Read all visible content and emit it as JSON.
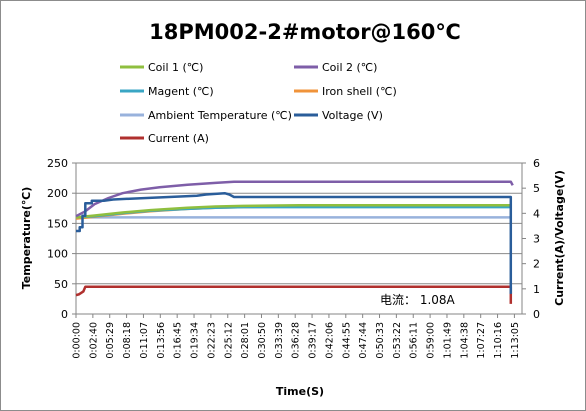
{
  "chart_data": {
    "type": "line",
    "title": "18PM002-2#motor@160℃",
    "xlabel": "Time(S)",
    "ylabel_left": "Temperature(℃)",
    "ylabel_right": "Current(A)/Voltage(V)",
    "ylim_left": [
      0,
      250
    ],
    "ylim_right": [
      0,
      6
    ],
    "yticks_left": [
      "0",
      "50",
      "100",
      "150",
      "200",
      "250"
    ],
    "yticks_right": [
      "0",
      "1",
      "2",
      "3",
      "4",
      "5",
      "6"
    ],
    "x_range_s": [
      0,
      4800
    ],
    "xticks": [
      "0:00:00",
      "0:02:40",
      "0:05:29",
      "0:08:18",
      "0:11:07",
      "0:13:56",
      "0:16:45",
      "0:19:34",
      "0:22:23",
      "0:25:12",
      "0:28:01",
      "0:30:50",
      "0:33:39",
      "0:36:28",
      "0:39:17",
      "0:42:06",
      "0:44:55",
      "0:47:44",
      "0:50:33",
      "0:53:22",
      "0:56:11",
      "0:59:00",
      "1:01:49",
      "1:04:38",
      "1:07:27",
      "1:10:16",
      "1:13:05"
    ],
    "grid": true,
    "legend": "top",
    "annotation": "电流：  1.08A",
    "series": [
      {
        "name": "Coil 1 (℃)",
        "axis": "left",
        "color": "#8fbf3f",
        "points": [
          [
            0,
            160
          ],
          [
            200,
            163
          ],
          [
            500,
            168
          ],
          [
            800,
            172
          ],
          [
            1200,
            176
          ],
          [
            1500,
            178
          ],
          [
            1800,
            179
          ],
          [
            2400,
            180
          ],
          [
            3600,
            180
          ],
          [
            4560,
            180
          ],
          [
            4680,
            180
          ]
        ]
      },
      {
        "name": "Coil 2 (℃)",
        "axis": "left",
        "color": "#7e5ea8",
        "points": [
          [
            0,
            162
          ],
          [
            100,
            170
          ],
          [
            200,
            182
          ],
          [
            350,
            192
          ],
          [
            500,
            200
          ],
          [
            700,
            206
          ],
          [
            900,
            210
          ],
          [
            1200,
            214
          ],
          [
            1500,
            217
          ],
          [
            1700,
            219
          ],
          [
            1900,
            219
          ],
          [
            2400,
            219
          ],
          [
            3600,
            219
          ],
          [
            4560,
            219
          ],
          [
            4680,
            219
          ],
          [
            4700,
            213
          ]
        ]
      },
      {
        "name": "Magent (℃)",
        "axis": "left",
        "color": "#39a6c4",
        "points": [
          [
            0,
            160
          ],
          [
            200,
            162
          ],
          [
            500,
            167
          ],
          [
            800,
            171
          ],
          [
            1200,
            174
          ],
          [
            1500,
            176
          ],
          [
            1800,
            177
          ],
          [
            2400,
            177
          ],
          [
            3600,
            177
          ],
          [
            4560,
            177
          ],
          [
            4680,
            177
          ]
        ]
      },
      {
        "name": "Iron shell (℃)",
        "axis": "left",
        "color": "#f0933a",
        "points": [
          [
            0,
            158
          ],
          [
            200,
            161
          ],
          [
            500,
            166
          ],
          [
            800,
            170
          ],
          [
            1200,
            174
          ],
          [
            1500,
            176
          ],
          [
            1800,
            177
          ],
          [
            2400,
            178
          ],
          [
            3600,
            178
          ],
          [
            4560,
            178
          ],
          [
            4680,
            178
          ]
        ]
      },
      {
        "name": "Ambient Temperature (℃)",
        "axis": "left",
        "color": "#98b2dc",
        "points": [
          [
            0,
            160
          ],
          [
            4680,
            160
          ]
        ]
      },
      {
        "name": "Voltage (V)",
        "axis": "right",
        "color": "#2a5d9a",
        "points": [
          [
            0,
            3.3
          ],
          [
            40,
            3.3
          ],
          [
            40,
            3.45
          ],
          [
            70,
            3.45
          ],
          [
            70,
            3.9
          ],
          [
            100,
            3.9
          ],
          [
            100,
            4.4
          ],
          [
            170,
            4.4
          ],
          [
            170,
            4.5
          ],
          [
            300,
            4.5
          ],
          [
            400,
            4.55
          ],
          [
            700,
            4.6
          ],
          [
            1000,
            4.65
          ],
          [
            1300,
            4.7
          ],
          [
            1400,
            4.75
          ],
          [
            1600,
            4.8
          ],
          [
            1650,
            4.75
          ],
          [
            1700,
            4.65
          ],
          [
            4560,
            4.65
          ],
          [
            4680,
            4.65
          ],
          [
            4680,
            0.8
          ]
        ]
      },
      {
        "name": "Current (A)",
        "axis": "right",
        "color": "#b0302e",
        "points": [
          [
            0,
            0.75
          ],
          [
            30,
            0.78
          ],
          [
            80,
            0.9
          ],
          [
            100,
            1.08
          ],
          [
            4680,
            1.08
          ],
          [
            4680,
            0.4
          ]
        ]
      }
    ]
  }
}
